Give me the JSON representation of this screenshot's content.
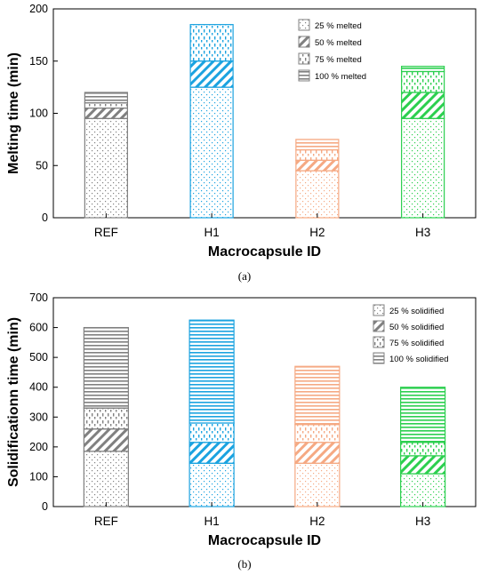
{
  "panels": [
    {
      "panel_label": "(a)",
      "legend_entries": [
        "25 % melted",
        "50 % melted",
        "75 % melted",
        "100 % melted"
      ]
    },
    {
      "panel_label": "(b)",
      "legend_entries": [
        "25 % solidified",
        "50 % solidified",
        "75 % solidified",
        "100 % solidified"
      ]
    }
  ],
  "bar_colors": {
    "REF": "#808080",
    "H1": "#1ba3e0",
    "H2": "#f5a983",
    "H3": "#2ccf4f"
  },
  "legend_color": "#808080",
  "chart_data": [
    {
      "type": "bar",
      "stacked": true,
      "title": "",
      "xlabel": "Macrocapsule ID",
      "ylabel": "Melting time (min)",
      "categories": [
        "REF",
        "H1",
        "H2",
        "H3"
      ],
      "ylim": [
        0,
        200
      ],
      "yticks": [
        0,
        50,
        100,
        150,
        200
      ],
      "grid": false,
      "legend_position": "top-right",
      "series": [
        {
          "name": "25 % melted",
          "pattern": "dots",
          "values": [
            95,
            125,
            45,
            95
          ]
        },
        {
          "name": "50 % melted",
          "pattern": "diagonal",
          "values": [
            10,
            25,
            10,
            25
          ]
        },
        {
          "name": "75 % melted",
          "pattern": "vdash",
          "values": [
            5,
            35,
            10,
            20
          ]
        },
        {
          "name": "100 % melted",
          "pattern": "horizontal",
          "values": [
            10,
            0,
            10,
            5
          ]
        }
      ]
    },
    {
      "type": "bar",
      "stacked": true,
      "title": "",
      "xlabel": "Macrocapsule ID",
      "ylabel": "Solidificationn time (min)",
      "categories": [
        "REF",
        "H1",
        "H2",
        "H3"
      ],
      "ylim": [
        0,
        700
      ],
      "yticks": [
        0,
        100,
        200,
        300,
        400,
        500,
        600,
        700
      ],
      "grid": false,
      "legend_position": "top-right",
      "series": [
        {
          "name": "25 % solidified",
          "pattern": "dots",
          "values": [
            185,
            145,
            145,
            110
          ]
        },
        {
          "name": "50 % solidified",
          "pattern": "diagonal",
          "values": [
            75,
            70,
            70,
            60
          ]
        },
        {
          "name": "75 % solidified",
          "pattern": "vdash",
          "values": [
            70,
            65,
            60,
            45
          ]
        },
        {
          "name": "100 % solidified",
          "pattern": "horizontal",
          "values": [
            270,
            345,
            195,
            185
          ]
        }
      ]
    }
  ]
}
